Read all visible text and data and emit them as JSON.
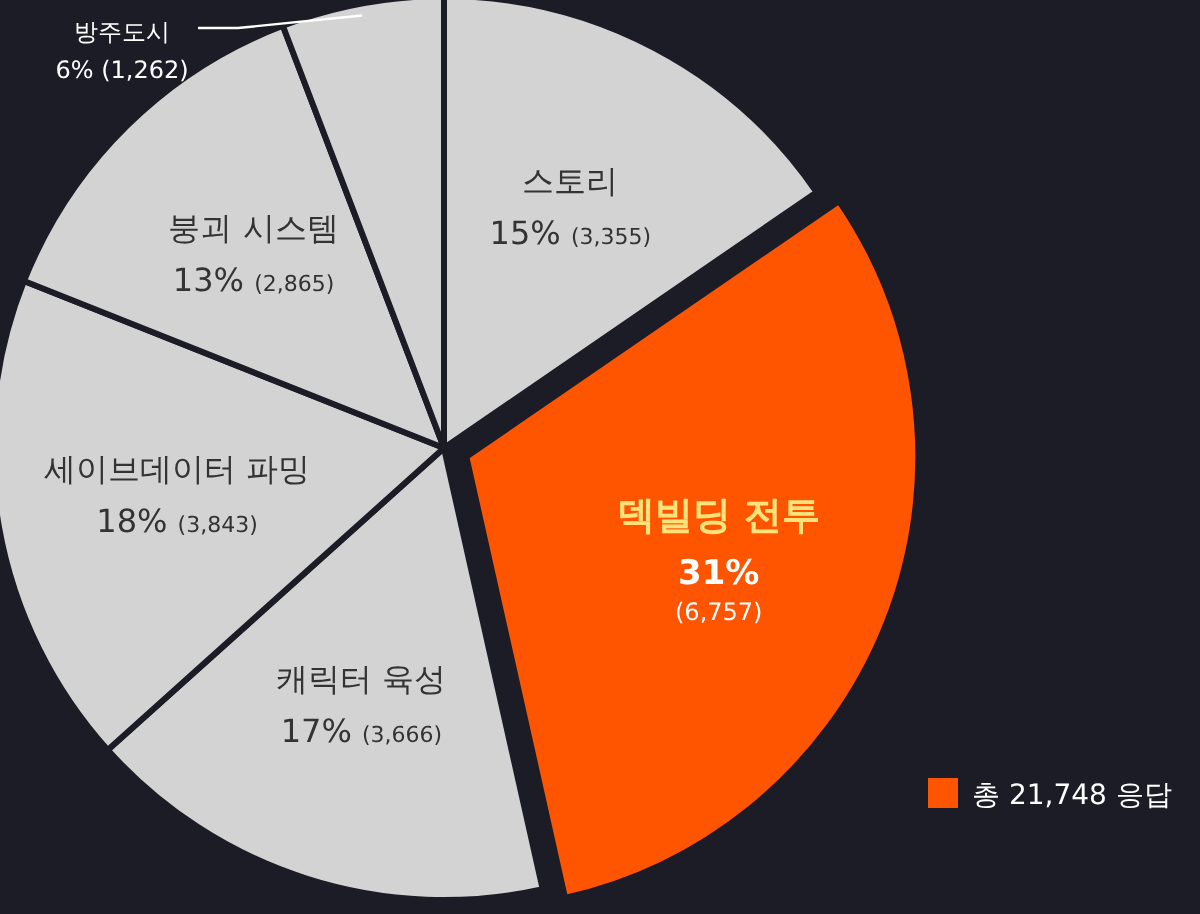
{
  "chart_data": {
    "type": "pie",
    "categories": [
      "스토리",
      "덱빌딩 전투",
      "캐릭터 육성",
      "세이브데이터 파밍",
      "붕괴 시스템",
      "방주도시"
    ],
    "values": [
      3355,
      6757,
      3666,
      3843,
      2865,
      1262
    ],
    "colors": [
      "#d3d3d3",
      "#ff5500",
      "#d3d3d3",
      "#d3d3d3",
      "#d3d3d3",
      "#d3d3d3"
    ],
    "value_labels": [
      "15% (3,355)",
      "31% (6,757)",
      "17% (3,666)",
      "18% (3,843)",
      "13% (2,865)",
      "6% (1,262)"
    ],
    "annotations": [
      "총 21,748 응답"
    ]
  }
}
